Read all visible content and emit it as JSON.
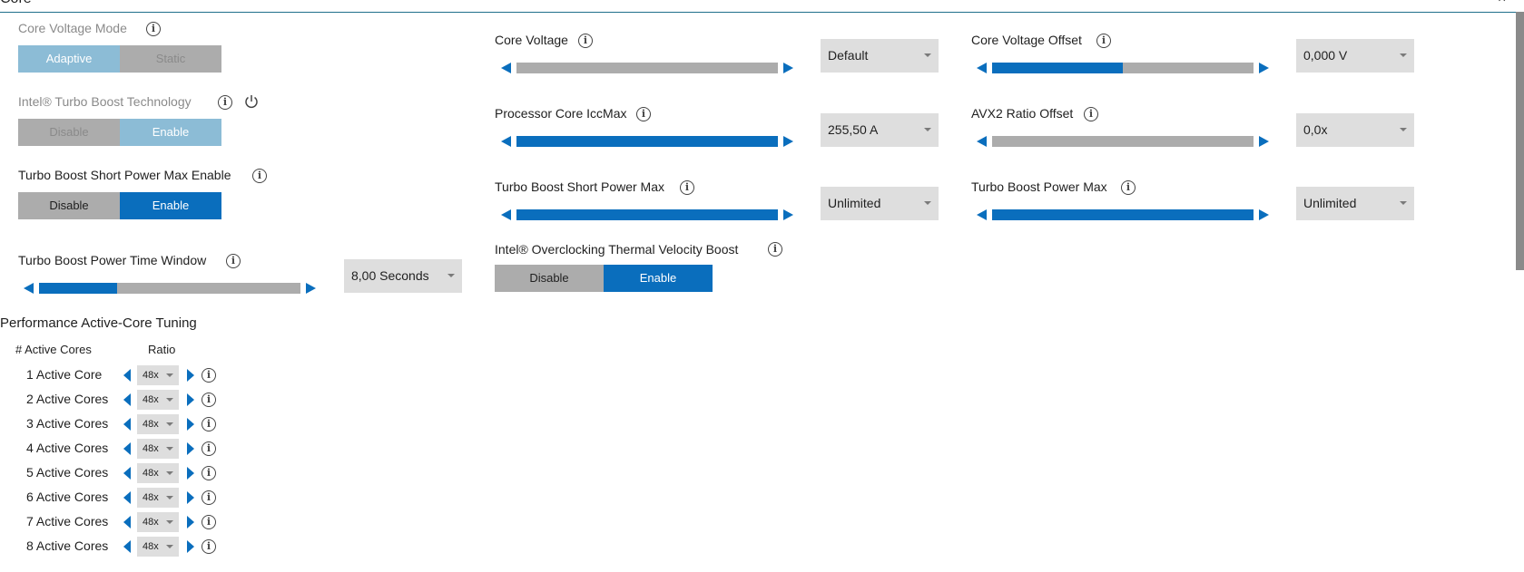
{
  "window": {
    "title": "Core",
    "close_glyph": "×"
  },
  "core_voltage_mode": {
    "label": "Core Voltage Mode",
    "options": [
      "Adaptive",
      "Static"
    ],
    "selected": "Adaptive"
  },
  "turbo_boost_technology": {
    "label": "Intel® Turbo Boost Technology",
    "options": [
      "Disable",
      "Enable"
    ],
    "selected": "Enable"
  },
  "turbo_boost_short_power_max_enable": {
    "label": "Turbo Boost Short Power Max Enable",
    "options": [
      "Disable",
      "Enable"
    ],
    "selected": "Enable"
  },
  "turbo_boost_power_time_window": {
    "label": "Turbo Boost Power Time Window",
    "value": "8,00 Seconds",
    "level": 0.3
  },
  "core_voltage": {
    "label": "Core Voltage",
    "value": "Default",
    "level": 0.0
  },
  "processor_core_iccmax": {
    "label": "Processor Core IccMax",
    "value": "255,50 A",
    "level": 1.0
  },
  "turbo_boost_short_power_max": {
    "label": "Turbo Boost Short Power Max",
    "value": "Unlimited",
    "level": 1.0
  },
  "thermal_velocity_boost": {
    "label": "Intel® Overclocking Thermal Velocity Boost",
    "options": [
      "Disable",
      "Enable"
    ],
    "selected": "Enable"
  },
  "core_voltage_offset": {
    "label": "Core Voltage Offset",
    "value": "0,000 V",
    "level": 0.5
  },
  "avx2_ratio_offset": {
    "label": "AVX2 Ratio Offset",
    "value": "0,0x",
    "level": 0.0
  },
  "turbo_boost_power_max": {
    "label": "Turbo Boost Power Max",
    "value": "Unlimited",
    "level": 1.0
  },
  "active_core_tuning": {
    "title": "Performance Active-Core Tuning",
    "col_cores": "# Active Cores",
    "col_ratio": "Ratio",
    "rows": [
      {
        "label": "1 Active Core",
        "ratio": "48x"
      },
      {
        "label": "2 Active Cores",
        "ratio": "48x"
      },
      {
        "label": "3 Active Cores",
        "ratio": "48x"
      },
      {
        "label": "4 Active Cores",
        "ratio": "48x"
      },
      {
        "label": "5 Active Cores",
        "ratio": "48x"
      },
      {
        "label": "6 Active Cores",
        "ratio": "48x"
      },
      {
        "label": "7 Active Cores",
        "ratio": "48x"
      },
      {
        "label": "8 Active Cores",
        "ratio": "48x"
      }
    ]
  },
  "colors": {
    "accent": "#0a6ebd",
    "track": "#acacac",
    "dim_accent": "#8cbcd6",
    "select_bg": "#dedede"
  },
  "icons": {
    "info": "info-icon",
    "power": "power-icon"
  }
}
